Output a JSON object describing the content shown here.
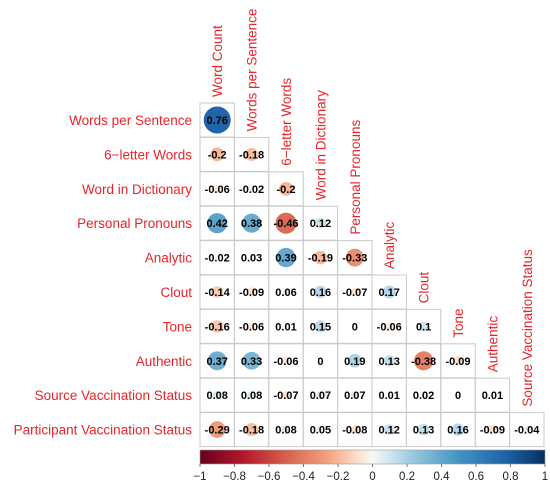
{
  "chart_data": {
    "type": "heatmap",
    "title": "",
    "variables": [
      "Word Count",
      "Words per Sentence",
      "6−letter Words",
      "Word in Dictionary",
      "Personal Pronouns",
      "Analytic",
      "Clout",
      "Tone",
      "Authentic",
      "Source Vaccination Status",
      "Participant Vaccination Status"
    ],
    "row_labels": [
      "Words per Sentence",
      "6−letter Words",
      "Word in Dictionary",
      "Personal Pronouns",
      "Analytic",
      "Clout",
      "Tone",
      "Authentic",
      "Source Vaccination Status",
      "Participant Vaccination Status"
    ],
    "col_labels": [
      "Word Count",
      "Words per Sentence",
      "6−letter Words",
      "Word in Dictionary",
      "Personal Pronouns",
      "Analytic",
      "Clout",
      "Tone",
      "Authentic",
      "Source Vaccination Status"
    ],
    "lower_triangle_values": [
      [
        "0.76"
      ],
      [
        "-0.2",
        "-0.18"
      ],
      [
        "-0.06",
        "-0.02",
        "-0.2"
      ],
      [
        "0.42",
        "0.38",
        "-0.46",
        "0.12"
      ],
      [
        "-0.02",
        "0.03",
        "0.39",
        "-0.19",
        "-0.33"
      ],
      [
        "-0.14",
        "-0.09",
        "0.06",
        "0.16",
        "-0.07",
        "0.17"
      ],
      [
        "-0.16",
        "-0.06",
        "0.01",
        "0.15",
        "0",
        "-0.06",
        "0.1"
      ],
      [
        "0.37",
        "0.33",
        "-0.06",
        "0",
        "0.19",
        "0.13",
        "-0.38",
        "-0.09"
      ],
      [
        "0.08",
        "0.08",
        "-0.07",
        "0.07",
        "0.07",
        "0.01",
        "0.02",
        "0",
        "0.01"
      ],
      [
        "-0.29",
        "-0.18",
        "0.08",
        "0.05",
        "-0.08",
        "0.12",
        "0.13",
        "0.16",
        "-0.09",
        "-0.04"
      ]
    ],
    "colorbar": {
      "range": [
        -1,
        1
      ],
      "ticks": [
        "−1",
        "−0.8",
        "−0.6",
        "−0.4",
        "−0.2",
        "0",
        "0.2",
        "0.4",
        "0.6",
        "0.8",
        "1"
      ],
      "stops": [
        {
          "v": -1,
          "color": "#67001f"
        },
        {
          "v": -0.75,
          "color": "#b2182b"
        },
        {
          "v": -0.5,
          "color": "#d6604d"
        },
        {
          "v": -0.25,
          "color": "#f4a582"
        },
        {
          "v": -0.1,
          "color": "#fddbc7"
        },
        {
          "v": 0,
          "color": "#f7f7f7"
        },
        {
          "v": 0.1,
          "color": "#d1e5f0"
        },
        {
          "v": 0.25,
          "color": "#92c5de"
        },
        {
          "v": 0.5,
          "color": "#4393c3"
        },
        {
          "v": 0.75,
          "color": "#2166ac"
        },
        {
          "v": 1,
          "color": "#053061"
        }
      ]
    },
    "label_color": "#e8242a"
  }
}
